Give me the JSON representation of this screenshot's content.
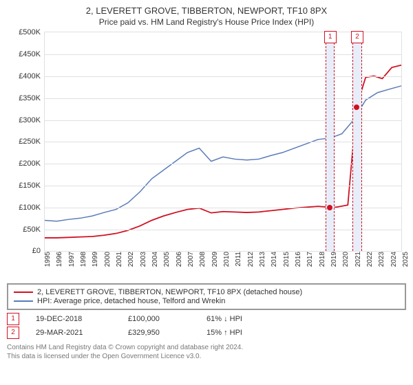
{
  "title": {
    "line1": "2, LEVERETT GROVE, TIBBERTON, NEWPORT, TF10 8PX",
    "line2": "Price paid vs. HM Land Registry's House Price Index (HPI)"
  },
  "chart": {
    "type": "line",
    "ylim": [
      0,
      500000
    ],
    "ytick_step": 50000,
    "yticks": [
      "£0",
      "£50K",
      "£100K",
      "£150K",
      "£200K",
      "£250K",
      "£300K",
      "£350K",
      "£400K",
      "£450K",
      "£500K"
    ],
    "x_years": [
      1995,
      1996,
      1997,
      1998,
      1999,
      2000,
      2001,
      2002,
      2003,
      2004,
      2005,
      2006,
      2007,
      2008,
      2009,
      2010,
      2011,
      2012,
      2013,
      2014,
      2015,
      2016,
      2017,
      2018,
      2019,
      2020,
      2021,
      2022,
      2023,
      2024,
      2025
    ],
    "x_range": [
      1995,
      2025
    ],
    "background_color": "#ffffff",
    "grid_color": "#e0e0e0",
    "marker_band_color": "#e8eef9",
    "markers": [
      {
        "tag": "1",
        "year": 2018.96,
        "y": 100000
      },
      {
        "tag": "2",
        "year": 2021.24,
        "y": 329950
      }
    ],
    "series": [
      {
        "name": "HPI: Average price, detached house, Telford and Wrekin",
        "color": "#5a7bb8",
        "line_width": 1.5,
        "points": [
          [
            1995,
            70000
          ],
          [
            1996,
            68000
          ],
          [
            1997,
            72000
          ],
          [
            1998,
            75000
          ],
          [
            1999,
            80000
          ],
          [
            2000,
            88000
          ],
          [
            2001,
            95000
          ],
          [
            2002,
            110000
          ],
          [
            2003,
            135000
          ],
          [
            2004,
            165000
          ],
          [
            2005,
            185000
          ],
          [
            2006,
            205000
          ],
          [
            2007,
            225000
          ],
          [
            2008,
            235000
          ],
          [
            2009,
            205000
          ],
          [
            2010,
            215000
          ],
          [
            2011,
            210000
          ],
          [
            2012,
            208000
          ],
          [
            2013,
            210000
          ],
          [
            2014,
            218000
          ],
          [
            2015,
            225000
          ],
          [
            2016,
            235000
          ],
          [
            2017,
            245000
          ],
          [
            2018,
            255000
          ],
          [
            2019,
            258000
          ],
          [
            2020,
            268000
          ],
          [
            2021,
            300000
          ],
          [
            2022,
            345000
          ],
          [
            2023,
            362000
          ],
          [
            2024,
            370000
          ],
          [
            2025,
            377500
          ]
        ]
      },
      {
        "name": "2, LEVERETT GROVE, TIBBERTON, NEWPORT, TF10 8PX (detached house)",
        "color": "#d01020",
        "line_width": 1.8,
        "points": [
          [
            1995,
            30000
          ],
          [
            1996,
            30000
          ],
          [
            1997,
            31000
          ],
          [
            1998,
            32000
          ],
          [
            1999,
            33000
          ],
          [
            2000,
            36000
          ],
          [
            2001,
            40000
          ],
          [
            2002,
            47000
          ],
          [
            2003,
            57000
          ],
          [
            2004,
            70000
          ],
          [
            2005,
            80000
          ],
          [
            2006,
            88000
          ],
          [
            2007,
            95000
          ],
          [
            2008,
            98000
          ],
          [
            2009,
            87000
          ],
          [
            2010,
            90000
          ],
          [
            2011,
            89000
          ],
          [
            2012,
            88000
          ],
          [
            2013,
            89000
          ],
          [
            2014,
            92000
          ],
          [
            2015,
            95000
          ],
          [
            2016,
            98000
          ],
          [
            2017,
            100000
          ],
          [
            2018,
            102000
          ],
          [
            2018.96,
            100000
          ],
          [
            2019.5,
            100000
          ],
          [
            2020.5,
            105000
          ],
          [
            2021.24,
            329950
          ],
          [
            2022,
            397000
          ],
          [
            2022.7,
            400000
          ],
          [
            2023.4,
            394000
          ],
          [
            2024.2,
            419500
          ],
          [
            2025,
            425000
          ]
        ]
      }
    ]
  },
  "legend": [
    {
      "color": "#d01020",
      "label": "2, LEVERETT GROVE, TIBBERTON, NEWPORT, TF10 8PX (detached house)"
    },
    {
      "color": "#5a7bb8",
      "label": "HPI: Average price, detached house, Telford and Wrekin"
    }
  ],
  "sales": [
    {
      "tag": "1",
      "date": "19-DEC-2018",
      "price": "£100,000",
      "delta": "61% ↓ HPI"
    },
    {
      "tag": "2",
      "date": "29-MAR-2021",
      "price": "£329,950",
      "delta": "15% ↑ HPI"
    }
  ],
  "footer": {
    "l1": "Contains HM Land Registry data © Crown copyright and database right 2024.",
    "l2": "This data is licensed under the Open Government Licence v3.0."
  }
}
